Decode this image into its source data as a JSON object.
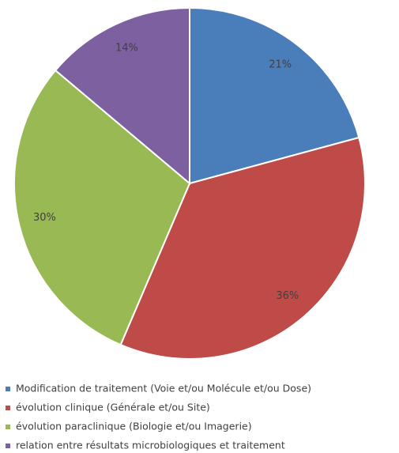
{
  "chart_data": {
    "type": "pie",
    "categories": [
      "Modification de traitement (Voie et/ou Molécule et/ou Dose)",
      "évolution clinique (Générale et/ou Site)",
      "évolution paraclinique (Biologie et/ou Imagerie)",
      "relation entre résultats microbiologiques et traitement"
    ],
    "values": [
      21,
      36,
      30,
      14
    ],
    "value_labels": [
      "21%",
      "36%",
      "30%",
      "14%"
    ],
    "colors": [
      "#4a7ebb",
      "#be4b48",
      "#98b954",
      "#7d60a0"
    ]
  }
}
